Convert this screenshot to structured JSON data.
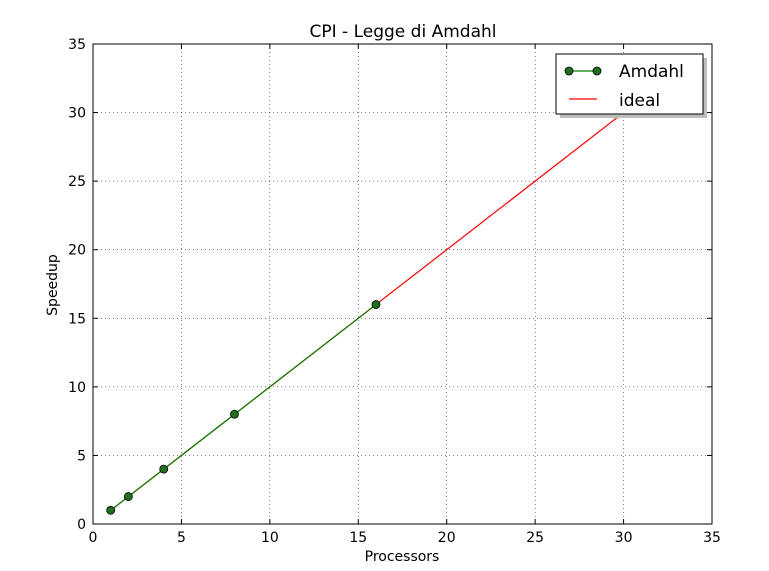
{
  "chart_data": {
    "type": "line",
    "title": "CPI -  Legge di Amdahl",
    "xlabel": "Processors",
    "ylabel": "Speedup",
    "xlim": [
      0,
      35
    ],
    "ylim": [
      0,
      35
    ],
    "xticks": [
      0,
      5,
      10,
      15,
      20,
      25,
      30,
      35
    ],
    "yticks": [
      0,
      5,
      10,
      15,
      20,
      25,
      30,
      35
    ],
    "grid": true,
    "legend_position": "top-right",
    "series": [
      {
        "name": "Amdahl",
        "x": [
          1,
          2,
          4,
          8,
          16
        ],
        "y": [
          1,
          2,
          4,
          8,
          16
        ],
        "line_color": "#008000",
        "marker": "circle",
        "marker_color": "#1f6f1f"
      },
      {
        "name": "ideal",
        "x": [
          1,
          32
        ],
        "y": [
          1,
          32
        ],
        "line_color": "#ff0000",
        "marker": "none"
      }
    ]
  }
}
